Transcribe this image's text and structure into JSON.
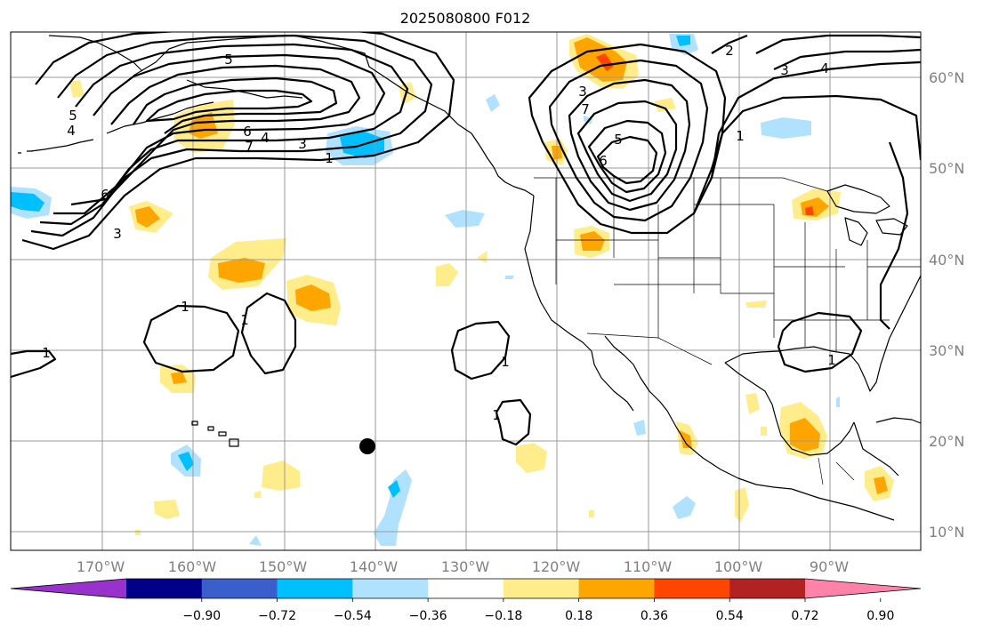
{
  "title": "2025080800 F012",
  "lon_labels": [
    "170°W",
    "160°W",
    "150°W",
    "140°W",
    "130°W",
    "120°W",
    "110°W",
    "100°W",
    "90°W"
  ],
  "lat_labels": [
    "60°N",
    "50°N",
    "40°N",
    "30°N",
    "20°N",
    "10°N"
  ],
  "colorbar": {
    "tick_labels": [
      "−0.90",
      "−0.72",
      "−0.54",
      "−0.36",
      "−0.18",
      "0.18",
      "0.36",
      "0.54",
      "0.72",
      "0.90"
    ],
    "colors": [
      "#9932cc",
      "#00008b",
      "#3a5fcd",
      "#00bfff",
      "#b0e2ff",
      "#ffffff",
      "#ffec8b",
      "#ffa500",
      "#ff4500",
      "#b22222",
      "#ff82ab"
    ]
  },
  "contour_labels": [
    "5",
    "6",
    "4",
    "3",
    "1",
    "7",
    "5",
    "3",
    "4",
    "6",
    "2",
    "3",
    "4",
    "1",
    "5",
    "6",
    "7",
    "3",
    "1",
    "1",
    "1",
    "1",
    "1",
    "1"
  ],
  "colors": {
    "light_yellow": "#ffec8b",
    "orange": "#ffa500",
    "light_blue": "#b0e2ff",
    "deep_sky_blue": "#00bfff",
    "gridline": "#999999",
    "axis_label": "#808080"
  },
  "marker": "black-dot-marker"
}
